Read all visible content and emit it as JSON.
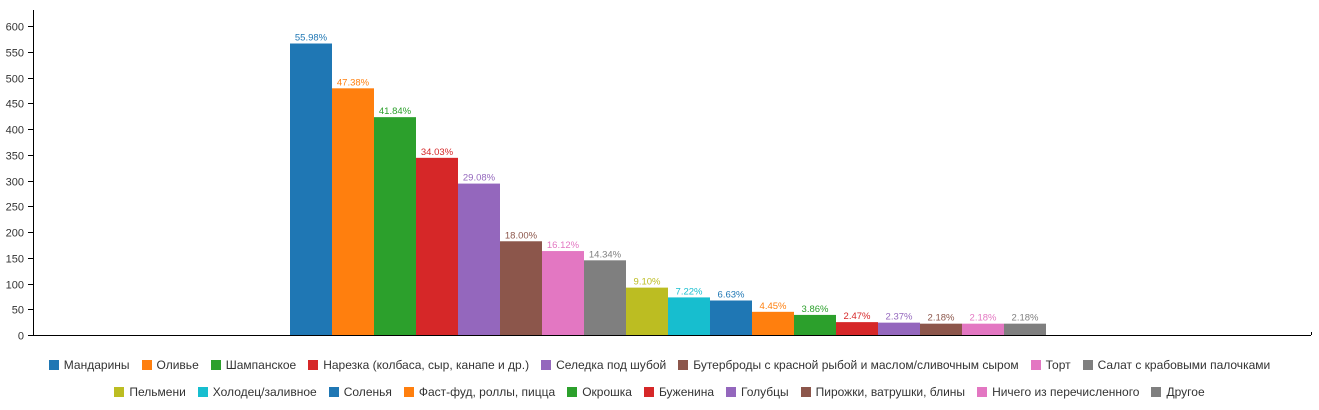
{
  "chart_data": {
    "type": "bar",
    "ylim": [
      0,
      600
    ],
    "y_ticks": [
      0,
      50,
      100,
      150,
      200,
      250,
      300,
      350,
      400,
      450,
      500,
      550,
      600
    ],
    "grid": false,
    "legend_position": "bottom",
    "series": [
      {
        "name": "Мандарины",
        "value": 566,
        "label": "55.98%",
        "color": "#1f77b4"
      },
      {
        "name": "Оливье",
        "value": 479,
        "label": "47.38%",
        "color": "#ff7f0e"
      },
      {
        "name": "Шампанское",
        "value": 423,
        "label": "41.84%",
        "color": "#2ca02c"
      },
      {
        "name": "Нарезка (колбаса, сыр, канапе и др.)",
        "value": 344,
        "label": "34.03%",
        "color": "#d62728"
      },
      {
        "name": "Селедка под шубой",
        "value": 294,
        "label": "29.08%",
        "color": "#9467bd"
      },
      {
        "name": "Бутерброды с красной рыбой и маслом/сливочным сыром",
        "value": 182,
        "label": "18.00%",
        "color": "#8c564b"
      },
      {
        "name": "Торт",
        "value": 163,
        "label": "16.12%",
        "color": "#e377c2"
      },
      {
        "name": "Салат с крабовыми палочками",
        "value": 145,
        "label": "14.34%",
        "color": "#7f7f7f"
      },
      {
        "name": "Пельмени",
        "value": 92,
        "label": "9.10%",
        "color": "#bcbd22"
      },
      {
        "name": "Холодец/заливное",
        "value": 73,
        "label": "7.22%",
        "color": "#17becf"
      },
      {
        "name": "Соленья",
        "value": 67,
        "label": "6.63%",
        "color": "#1f77b4"
      },
      {
        "name": "Фаст-фуд, роллы, пицца",
        "value": 45,
        "label": "4.45%",
        "color": "#ff7f0e"
      },
      {
        "name": "Окрошка",
        "value": 39,
        "label": "3.86%",
        "color": "#2ca02c"
      },
      {
        "name": "Буженина",
        "value": 25,
        "label": "2.47%",
        "color": "#d62728"
      },
      {
        "name": "Голубцы",
        "value": 24,
        "label": "2.37%",
        "color": "#9467bd"
      },
      {
        "name": "Пирожки, ватрушки, блины",
        "value": 22,
        "label": "2.18%",
        "color": "#8c564b"
      },
      {
        "name": "Ничего из перечисленного",
        "value": 22,
        "label": "2.18%",
        "color": "#e377c2"
      },
      {
        "name": "Другое",
        "value": 22,
        "label": "2.18%",
        "color": "#7f7f7f"
      }
    ],
    "legend_rows": [
      [
        0,
        1,
        2,
        3,
        4,
        5,
        6,
        7
      ],
      [
        8,
        9,
        10,
        11,
        12,
        13,
        14,
        15,
        16,
        17
      ]
    ]
  }
}
